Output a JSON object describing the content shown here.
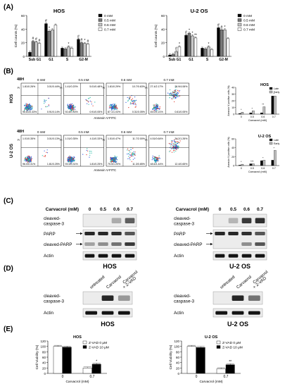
{
  "figure": {
    "panels": {
      "a": "(A)",
      "b": "(B)",
      "c": "(C)",
      "d": "(D)",
      "e": "(E)"
    },
    "colors": {
      "conc_0": "#000000",
      "conc_05": "#7a7a7a",
      "conc_06": "#c8c8c8",
      "conc_07": "#ffffff",
      "flow_hot": "#e03020",
      "flow_mid": "#2a50e0",
      "flow_cold": "#18b8a0"
    },
    "panel_a": {
      "ylabel": "Cell counts (%)",
      "legend": [
        "0 mM",
        "0.5 mM",
        "0.6 mM",
        "0.7 mM"
      ],
      "ylim": [
        0,
        60
      ],
      "yticks": [
        "0",
        "20",
        "40",
        "60"
      ],
      "categories": [
        "Sub G1",
        "G1",
        "S",
        "G2-M"
      ]
    },
    "panel_b": {
      "time": "48H",
      "xaxis": "Annexin V-FITC",
      "yaxis": "PI",
      "conditions": [
        "0 mM",
        "0.5 mM",
        "0.6 mM",
        "0.7 mM"
      ],
      "hos_quadrants": [
        [
          "1.81/0.26%",
          "3.01/0.44%",
          "95.61/0.33%",
          "0.91/0.14%"
        ],
        [
          "1.41/0.20%",
          "5.01/0.48%",
          "92.8/0.33%",
          "0.91/0.05%"
        ],
        [
          "1.81/0.29%",
          "10.7/0.63%",
          "87.1/1.03%",
          "0.31/0.05%"
        ],
        [
          "27.4/2.17%",
          "26.9/4.06%",
          "45.0/1.21%",
          "0.61/0.05%"
        ]
      ],
      "u2os_quadrants": [
        [
          "1.01/0.35%",
          "3.01/0.13%",
          "96.0/0.31%",
          "1.81/0.25%"
        ],
        [
          "1.01/0.35%",
          "4.11/0.33%",
          "93.9/0.31%",
          "1.81/0.25%"
        ],
        [
          "1.51/0.47%",
          "11.7/2.00%",
          "75.5/1.20%",
          "11.3/0.85%"
        ],
        [
          "4.51/0.64%",
          "34.2/1.26%",
          "48.6/1.44%",
          "12.4/0.65%"
        ]
      ],
      "bar_ylabel": "Annexin V positive cells (%)",
      "bar_xlabel": "Carvacrol (mM)",
      "bar_legend": [
        "Late",
        "Early"
      ]
    },
    "panel_c": {
      "carvacrol_label": "Carvacrol (mM)",
      "doses": [
        "0",
        "0.5",
        "0.6",
        "0.7"
      ],
      "bands": [
        "cleaved-\ncaspase-3",
        "PARP",
        "cleaved-PARP",
        "Actin"
      ]
    },
    "panel_d": {
      "lanes": [
        "untreated",
        "Carvacrol",
        "Carvacrol\n+ Z-VAD"
      ],
      "bands": [
        "cleaved-\ncaspase-3",
        "Actin"
      ]
    },
    "panel_e": {
      "ylabel": "Cell Viability (%)",
      "xlabel": "Carvacrol (mM)",
      "legend": [
        "Z-VAD  0 μM",
        "Z-VAD 10 μM"
      ],
      "yticks": [
        "0",
        "20",
        "40",
        "60",
        "80",
        "100",
        "120"
      ],
      "categories": [
        "0",
        "0.7"
      ]
    }
  },
  "chart_data": [
    {
      "type": "bar",
      "title": "HOS",
      "categories": [
        "Sub G1",
        "G1",
        "S",
        "G2-M"
      ],
      "ylabel": "Cell counts (%)",
      "ylim": [
        0,
        60
      ],
      "series": [
        {
          "name": "0 mM",
          "values": [
            6,
            48,
            12,
            25
          ]
        },
        {
          "name": "0.5 mM",
          "values": [
            22,
            37,
            11,
            20
          ]
        },
        {
          "name": "0.6 mM",
          "values": [
            21,
            39,
            14,
            19
          ]
        },
        {
          "name": "0.7 mM",
          "values": [
            19,
            46,
            12,
            18
          ]
        }
      ],
      "annotations": [
        {
          "category": "Sub G1",
          "series": "0.5 mM",
          "label": "#"
        },
        {
          "category": "Sub G1",
          "series": "0.6 mM",
          "label": "#"
        },
        {
          "category": "Sub G1",
          "series": "0.7 mM",
          "label": "#"
        },
        {
          "category": "G1",
          "series": "0 mM",
          "label": "#"
        },
        {
          "category": "G1",
          "series": "0.5 mM",
          "label": "*"
        },
        {
          "category": "S",
          "series": "0.6 mM",
          "label": "*"
        },
        {
          "category": "G2-M",
          "series": "0 mM",
          "label": "#"
        },
        {
          "category": "G2-M",
          "series": "0.5 mM",
          "label": "#"
        },
        {
          "category": "G2-M",
          "series": "0.6 mM",
          "label": "*"
        },
        {
          "category": "G2-M",
          "series": "0.7 mM",
          "label": "#"
        }
      ]
    },
    {
      "type": "bar",
      "title": "U-2 OS",
      "categories": [
        "Sub G1",
        "G1",
        "S",
        "G2-M"
      ],
      "ylabel": "Cell counts (%)",
      "ylim": [
        0,
        60
      ],
      "series": [
        {
          "name": "0 mM",
          "values": [
            2,
            31,
            12,
            42
          ]
        },
        {
          "name": "0.5 mM",
          "values": [
            3,
            34,
            11,
            39
          ]
        },
        {
          "name": "0.6 mM",
          "values": [
            7,
            30,
            14,
            39
          ]
        },
        {
          "name": "0.7 mM",
          "values": [
            14,
            27,
            10,
            26
          ]
        }
      ],
      "annotations": [
        {
          "category": "Sub G1",
          "series": "0.6 mM",
          "label": "#"
        },
        {
          "category": "Sub G1",
          "series": "0.7 mM",
          "label": "*"
        },
        {
          "category": "G1",
          "series": "0 mM",
          "label": "#"
        },
        {
          "category": "G1",
          "series": "0.5 mM",
          "label": "*"
        },
        {
          "category": "G1",
          "series": "0.6 mM",
          "label": "*"
        },
        {
          "category": "G1",
          "series": "0.7 mM",
          "label": "**"
        },
        {
          "category": "S",
          "series": "0.6 mM",
          "label": "*"
        },
        {
          "category": "G2-M",
          "series": "0 mM",
          "label": "#"
        },
        {
          "category": "G2-M",
          "series": "0.5 mM",
          "label": "#"
        },
        {
          "category": "G2-M",
          "series": "0.6 mM",
          "label": "*"
        }
      ]
    },
    {
      "type": "bar",
      "title": "HOS",
      "categories": [
        "0",
        "0.5",
        "0.6",
        "0.7"
      ],
      "xlabel": "Carvacrol (mM)",
      "ylabel": "Annexin V positive cells (%)",
      "ylim": [
        0,
        40
      ],
      "series": [
        {
          "name": "Late",
          "values": [
            1,
            2,
            2,
            27
          ]
        },
        {
          "name": "Early",
          "values": [
            3,
            5,
            11,
            27
          ]
        }
      ],
      "annotations": [
        "*",
        "*",
        "**",
        "*"
      ]
    },
    {
      "type": "bar",
      "title": "U-2 OS",
      "categories": [
        "0",
        "0.5",
        "0.6",
        "0.7"
      ],
      "xlabel": "Carvacrol (mM)",
      "ylabel": "Annexin V positive cells (%)",
      "ylim": [
        0,
        60
      ],
      "series": [
        {
          "name": "Late",
          "values": [
            1,
            4,
            11,
            12
          ]
        },
        {
          "name": "Early",
          "values": [
            3,
            4,
            12,
            34
          ]
        }
      ],
      "annotations": [
        "*",
        "***",
        "*",
        "*"
      ]
    },
    {
      "type": "bar",
      "title": "HOS",
      "categories": [
        "0",
        "0.7"
      ],
      "xlabel": "Carvacrol (mM)",
      "ylabel": "Cell Viability (%)",
      "ylim": [
        0,
        120
      ],
      "series": [
        {
          "name": "Z-VAD  0 μM",
          "values": [
            100,
            20
          ]
        },
        {
          "name": "Z-VAD 10 μM",
          "values": [
            97,
            34
          ]
        }
      ],
      "annotations": [
        {
          "category": "0.7",
          "label": "*"
        }
      ]
    },
    {
      "type": "bar",
      "title": "U-2 OS",
      "categories": [
        "0",
        "0.7"
      ],
      "xlabel": "Carvacrol (mM)",
      "ylabel": "Cell Viability (%)",
      "ylim": [
        0,
        120
      ],
      "series": [
        {
          "name": "Z-VAD  0 μM",
          "values": [
            100,
            17
          ]
        },
        {
          "name": "Z-VAD 10 μM",
          "values": [
            96,
            32
          ]
        }
      ],
      "annotations": [
        {
          "category": "0.7",
          "label": "**"
        }
      ]
    }
  ],
  "blots": {
    "c_hos_title": "HOS",
    "c_u2os_title": "U-2 OS",
    "d_hos_title": "HOS",
    "d_u2os_title": "U-2 OS"
  }
}
